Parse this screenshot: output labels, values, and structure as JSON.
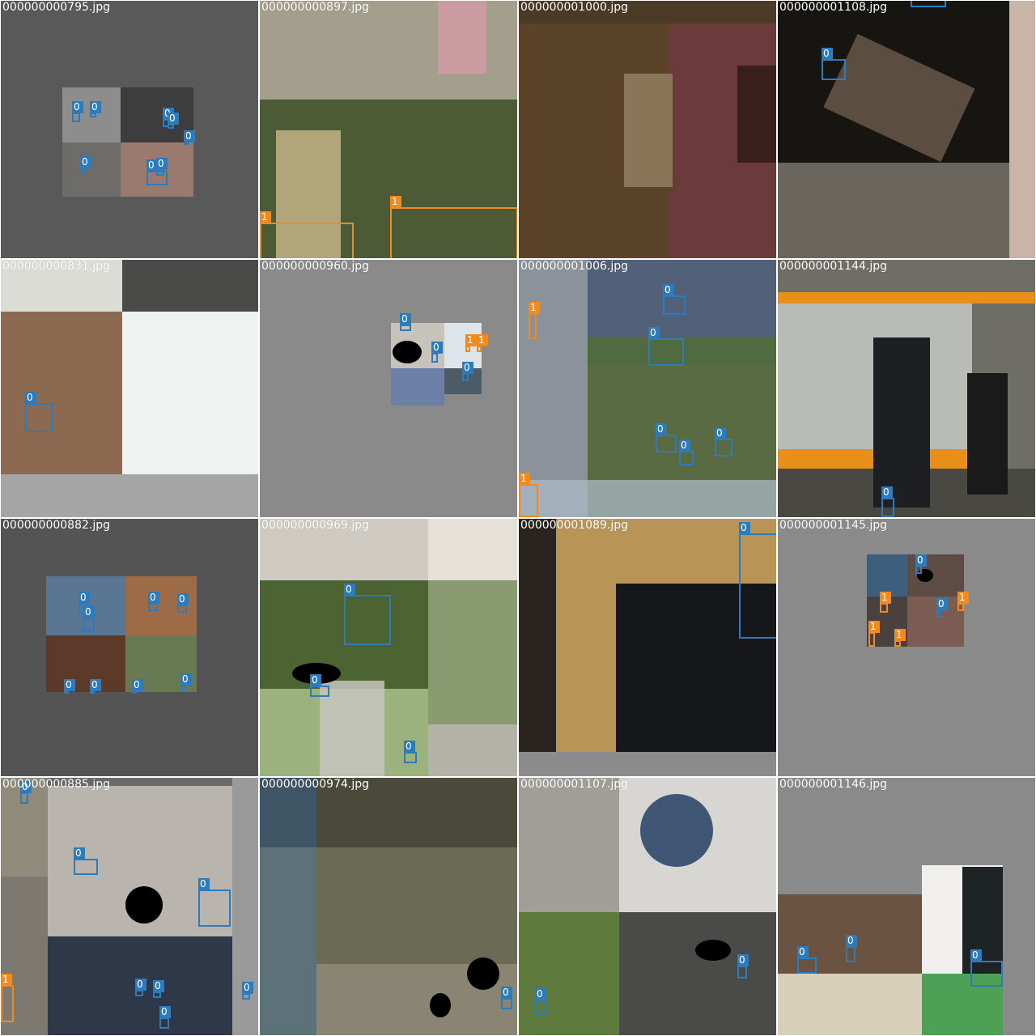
{
  "grid_title": "",
  "class_colors": {
    "0": "#2b7bbd",
    "1": "#f28a1e"
  },
  "tiles": [
    {
      "name": "000000000795.jpg",
      "label_class_list": [
        "0",
        "0",
        "0",
        "0",
        "0",
        "0",
        "0",
        "0"
      ]
    },
    {
      "name": "000000000897.jpg",
      "label_class_list": [
        "1",
        "1"
      ]
    },
    {
      "name": "000000001000.jpg",
      "label_class_list": []
    },
    {
      "name": "000000001108.jpg",
      "label_class_list": [
        "0"
      ]
    },
    {
      "name": "000000000831.jpg",
      "label_class_list": [
        "0"
      ]
    },
    {
      "name": "000000000960.jpg",
      "label_class_list": [
        "0",
        "0",
        "1",
        "1",
        "0"
      ]
    },
    {
      "name": "000000001006.jpg",
      "label_class_list": [
        "0",
        "0",
        "1",
        "0",
        "0",
        "0",
        "1",
        "1"
      ]
    },
    {
      "name": "000000001144.jpg",
      "label_class_list": [
        "0"
      ]
    },
    {
      "name": "000000000882.jpg",
      "label_class_list": [
        "0",
        "0",
        "0",
        "0",
        "0",
        "0",
        "0",
        "0"
      ]
    },
    {
      "name": "000000000969.jpg",
      "label_class_list": [
        "0",
        "0",
        "0"
      ]
    },
    {
      "name": "000000001089.jpg",
      "label_class_list": [
        "0"
      ]
    },
    {
      "name": "000000001145.jpg",
      "label_class_list": [
        "0",
        "1",
        "1",
        "1",
        "0",
        "1"
      ]
    },
    {
      "name": "000000000885.jpg",
      "label_class_list": [
        "0",
        "0",
        "0",
        "0",
        "0",
        "0",
        "1"
      ]
    },
    {
      "name": "000000000974.jpg",
      "label_class_list": [
        "0"
      ]
    },
    {
      "name": "000000001107.jpg",
      "label_class_list": [
        "0",
        "0"
      ]
    },
    {
      "name": "000000001146.jpg",
      "label_class_list": [
        "0",
        "0",
        "0"
      ]
    }
  ]
}
